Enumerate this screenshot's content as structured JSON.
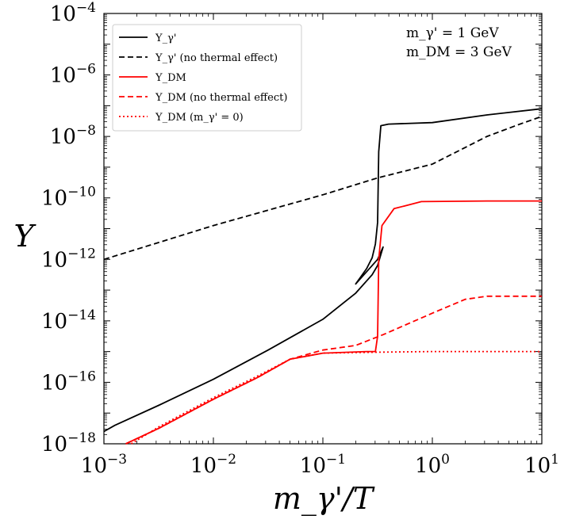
{
  "chart_data": {
    "type": "line",
    "title": "",
    "xlabel": "m_γ'/T",
    "ylabel": "Y",
    "x_scale": "log",
    "y_scale": "log",
    "xlim": [
      0.001,
      10
    ],
    "ylim": [
      1e-18,
      0.0001
    ],
    "x_tick_labels": [
      {
        "value": 0.001,
        "base": "10",
        "exp": "−3"
      },
      {
        "value": 0.01,
        "base": "10",
        "exp": "−2"
      },
      {
        "value": 0.1,
        "base": "10",
        "exp": "−1"
      },
      {
        "value": 1,
        "base": "10",
        "exp": "0"
      },
      {
        "value": 10,
        "base": "10",
        "exp": "1"
      }
    ],
    "y_tick_labels": [
      {
        "value": 1e-18,
        "base": "10",
        "exp": "−18"
      },
      {
        "value": 1e-16,
        "base": "10",
        "exp": "−16"
      },
      {
        "value": 1e-14,
        "base": "10",
        "exp": "−14"
      },
      {
        "value": 1e-12,
        "base": "10",
        "exp": "−12"
      },
      {
        "value": 1e-10,
        "base": "10",
        "exp": "−10"
      },
      {
        "value": 1e-08,
        "base": "10",
        "exp": "−8"
      },
      {
        "value": 1e-06,
        "base": "10",
        "exp": "−6"
      },
      {
        "value": 0.0001,
        "base": "10",
        "exp": "−4"
      }
    ],
    "annotations": [
      "m_γ' = 1 GeV",
      "m_DM = 3 GeV"
    ],
    "legend_position": "top-left",
    "series": [
      {
        "name": "Y_γ'",
        "color": "#000000",
        "style": "solid",
        "points": [
          [
            -3.0,
            -17.6
          ],
          [
            -2.9,
            -17.4
          ],
          [
            -2.5,
            -16.75
          ],
          [
            -2.0,
            -15.9
          ],
          [
            -1.5,
            -14.95
          ],
          [
            -1.0,
            -13.95
          ],
          [
            -0.7,
            -13.1
          ],
          [
            -0.55,
            -12.5
          ],
          [
            -0.5,
            -12.2
          ],
          [
            -0.45,
            -11.6
          ],
          [
            -0.5,
            -12.0
          ],
          [
            -0.7,
            -12.8
          ],
          [
            -0.65,
            -12.55
          ],
          [
            -0.6,
            -12.3
          ],
          [
            -0.55,
            -11.95
          ],
          [
            -0.52,
            -11.5
          ],
          [
            -0.5,
            -10.8
          ],
          [
            -0.49,
            -8.5
          ],
          [
            -0.47,
            -7.65
          ],
          [
            -0.4,
            -7.6
          ],
          [
            0.0,
            -7.55
          ],
          [
            0.5,
            -7.3
          ],
          [
            1.0,
            -7.1
          ]
        ]
      },
      {
        "name": "Y_γ' (no thermal effect)",
        "color": "#000000",
        "style": "dashed",
        "points": [
          [
            -3.0,
            -12.0
          ],
          [
            -2.5,
            -11.45
          ],
          [
            -2.0,
            -10.9
          ],
          [
            -1.5,
            -10.4
          ],
          [
            -1.0,
            -9.9
          ],
          [
            -0.5,
            -9.35
          ],
          [
            0.0,
            -8.9
          ],
          [
            0.5,
            -8.0
          ],
          [
            0.8,
            -7.6
          ],
          [
            1.0,
            -7.35
          ]
        ]
      },
      {
        "name": "Y_DM",
        "color": "#ff0000",
        "style": "solid",
        "points": [
          [
            -2.8,
            -18.0
          ],
          [
            -2.5,
            -17.5
          ],
          [
            -2.0,
            -16.55
          ],
          [
            -1.6,
            -15.85
          ],
          [
            -1.3,
            -15.25
          ],
          [
            -1.0,
            -15.05
          ],
          [
            -0.6,
            -15.0
          ],
          [
            -0.52,
            -15.0
          ],
          [
            -0.5,
            -14.5
          ],
          [
            -0.49,
            -12.0
          ],
          [
            -0.46,
            -10.9
          ],
          [
            -0.35,
            -10.35
          ],
          [
            -0.1,
            -10.12
          ],
          [
            0.5,
            -10.1
          ],
          [
            1.0,
            -10.1
          ]
        ]
      },
      {
        "name": "Y_DM (no thermal effect)",
        "color": "#ff0000",
        "style": "dashed",
        "points": [
          [
            -2.8,
            -18.0
          ],
          [
            -2.5,
            -17.5
          ],
          [
            -2.0,
            -16.55
          ],
          [
            -1.6,
            -15.85
          ],
          [
            -1.3,
            -15.25
          ],
          [
            -1.0,
            -14.95
          ],
          [
            -0.7,
            -14.8
          ],
          [
            -0.45,
            -14.45
          ],
          [
            0.0,
            -13.75
          ],
          [
            0.3,
            -13.3
          ],
          [
            0.5,
            -13.2
          ],
          [
            1.0,
            -13.2
          ]
        ]
      },
      {
        "name": "Y_DM (m_γ' = 0)",
        "color": "#ff0000",
        "style": "dotted",
        "points": [
          [
            -2.75,
            -18.0
          ],
          [
            -2.5,
            -17.45
          ],
          [
            -2.0,
            -16.5
          ],
          [
            -1.6,
            -15.8
          ],
          [
            -1.3,
            -15.25
          ],
          [
            -1.0,
            -15.05
          ],
          [
            -0.5,
            -15.02
          ],
          [
            0.0,
            -15.0
          ],
          [
            1.0,
            -15.0
          ]
        ]
      }
    ]
  }
}
